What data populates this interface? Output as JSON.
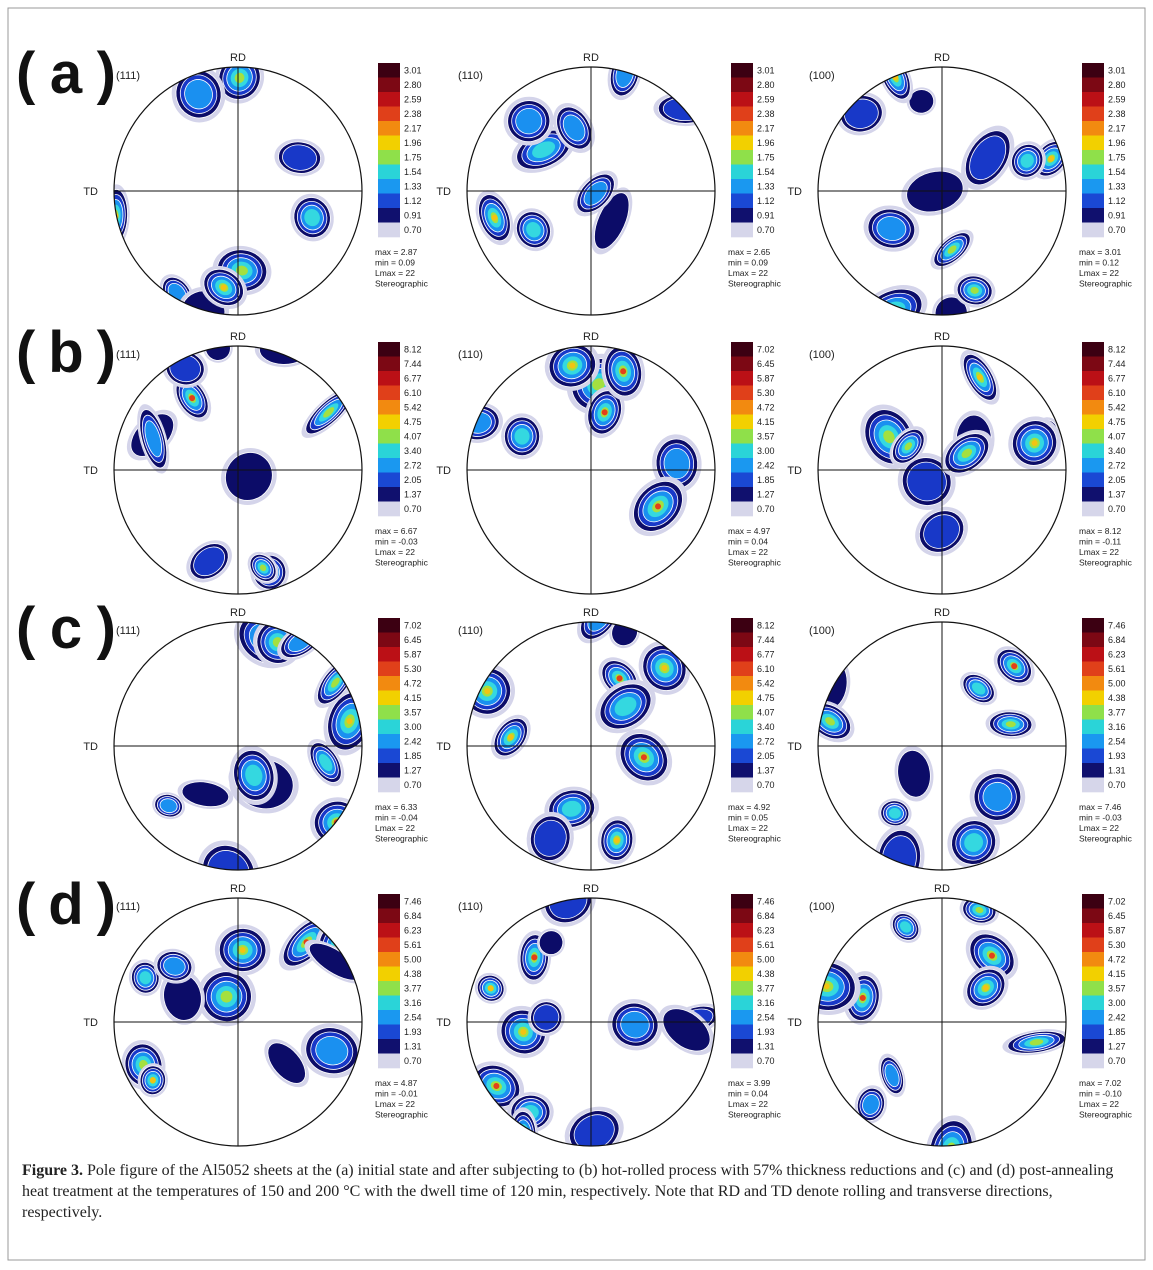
{
  "rows": [
    {
      "label": "(a)",
      "figures": [
        {
          "plane": "(111)",
          "rd": "RD",
          "td": "TD",
          "scale": [
            "3.01",
            "2.80",
            "2.59",
            "2.38",
            "2.17",
            "1.96",
            "1.75",
            "1.54",
            "1.33",
            "1.12",
            "0.91",
            "0.70"
          ],
          "stats": [
            "max = 2.87",
            "min = 0.09",
            "Lmax = 22",
            "Stereographic"
          ]
        },
        {
          "plane": "(110)",
          "rd": "RD",
          "td": "TD",
          "scale": [
            "3.01",
            "2.80",
            "2.59",
            "2.38",
            "2.17",
            "1.96",
            "1.75",
            "1.54",
            "1.33",
            "1.12",
            "0.91",
            "0.70"
          ],
          "stats": [
            "max = 2.65",
            "min = 0.09",
            "Lmax = 22",
            "Stereographic"
          ]
        },
        {
          "plane": "(100)",
          "rd": "RD",
          "td": "TD",
          "scale": [
            "3.01",
            "2.80",
            "2.59",
            "2.38",
            "2.17",
            "1.96",
            "1.75",
            "1.54",
            "1.33",
            "1.12",
            "0.91",
            "0.70"
          ],
          "stats": [
            "max = 3.01",
            "min = 0.12",
            "Lmax = 22",
            "Stereographic"
          ]
        }
      ]
    },
    {
      "label": "(b)",
      "figures": [
        {
          "plane": "(111)",
          "rd": "RD",
          "td": "TD",
          "scale": [
            "8.12",
            "7.44",
            "6.77",
            "6.10",
            "5.42",
            "4.75",
            "4.07",
            "3.40",
            "2.72",
            "2.05",
            "1.37",
            "0.70"
          ],
          "stats": [
            "max = 6.67",
            "min = -0.03",
            "Lmax = 22",
            "Stereographic"
          ]
        },
        {
          "plane": "(110)",
          "rd": "RD",
          "td": "TD",
          "scale": [
            "7.02",
            "6.45",
            "5.87",
            "5.30",
            "4.72",
            "4.15",
            "3.57",
            "3.00",
            "2.42",
            "1.85",
            "1.27",
            "0.70"
          ],
          "stats": [
            "max = 4.97",
            "min = 0.04",
            "Lmax = 22",
            "Stereographic"
          ]
        },
        {
          "plane": "(100)",
          "rd": "RD",
          "td": "TD",
          "scale": [
            "8.12",
            "7.44",
            "6.77",
            "6.10",
            "5.42",
            "4.75",
            "4.07",
            "3.40",
            "2.72",
            "2.05",
            "1.37",
            "0.70"
          ],
          "stats": [
            "max = 8.12",
            "min = -0.11",
            "Lmax = 22",
            "Stereographic"
          ]
        }
      ]
    },
    {
      "label": "(c)",
      "figures": [
        {
          "plane": "(111)",
          "rd": "RD",
          "td": "TD",
          "scale": [
            "7.02",
            "6.45",
            "5.87",
            "5.30",
            "4.72",
            "4.15",
            "3.57",
            "3.00",
            "2.42",
            "1.85",
            "1.27",
            "0.70"
          ],
          "stats": [
            "max = 6.33",
            "min = -0.04",
            "Lmax = 22",
            "Stereographic"
          ]
        },
        {
          "plane": "(110)",
          "rd": "RD",
          "td": "TD",
          "scale": [
            "8.12",
            "7.44",
            "6.77",
            "6.10",
            "5.42",
            "4.75",
            "4.07",
            "3.40",
            "2.72",
            "2.05",
            "1.37",
            "0.70"
          ],
          "stats": [
            "max = 4.92",
            "min = 0.05",
            "Lmax = 22",
            "Stereographic"
          ]
        },
        {
          "plane": "(100)",
          "rd": "RD",
          "td": "TD",
          "scale": [
            "7.46",
            "6.84",
            "6.23",
            "5.61",
            "5.00",
            "4.38",
            "3.77",
            "3.16",
            "2.54",
            "1.93",
            "1.31",
            "0.70"
          ],
          "stats": [
            "max = 7.46",
            "min = -0.03",
            "Lmax = 22",
            "Stereographic"
          ]
        }
      ]
    },
    {
      "label": "(d)",
      "figures": [
        {
          "plane": "(111)",
          "rd": "RD",
          "td": "TD",
          "scale": [
            "7.46",
            "6.84",
            "6.23",
            "5.61",
            "5.00",
            "4.38",
            "3.77",
            "3.16",
            "2.54",
            "1.93",
            "1.31",
            "0.70"
          ],
          "stats": [
            "max = 4.87",
            "min = -0.01",
            "Lmax = 22",
            "Stereographic"
          ]
        },
        {
          "plane": "(110)",
          "rd": "RD",
          "td": "TD",
          "scale": [
            "7.46",
            "6.84",
            "6.23",
            "5.61",
            "5.00",
            "4.38",
            "3.77",
            "3.16",
            "2.54",
            "1.93",
            "1.31",
            "0.70"
          ],
          "stats": [
            "max = 3.99",
            "min = 0.04",
            "Lmax = 22",
            "Stereographic"
          ]
        },
        {
          "plane": "(100)",
          "rd": "RD",
          "td": "TD",
          "scale": [
            "7.02",
            "6.45",
            "5.87",
            "5.30",
            "4.72",
            "4.15",
            "3.57",
            "3.00",
            "2.42",
            "1.85",
            "1.27",
            "0.70"
          ],
          "stats": [
            "max = 7.02",
            "min = -0.10",
            "Lmax = 22",
            "Stereographic"
          ]
        }
      ]
    }
  ],
  "caption": {
    "label": "Figure 3.",
    "text": "Pole figure of the Al5052 sheets at the (a) initial state and after subjecting to (b) hot-rolled process with 57% thickness reductions and (c) and (d) post-annealing heat treatment at the temperatures of 150 and 200 °C with the dwell time of 120 min, respectively. Note that RD and TD denote rolling and transverse directions, respectively."
  }
}
